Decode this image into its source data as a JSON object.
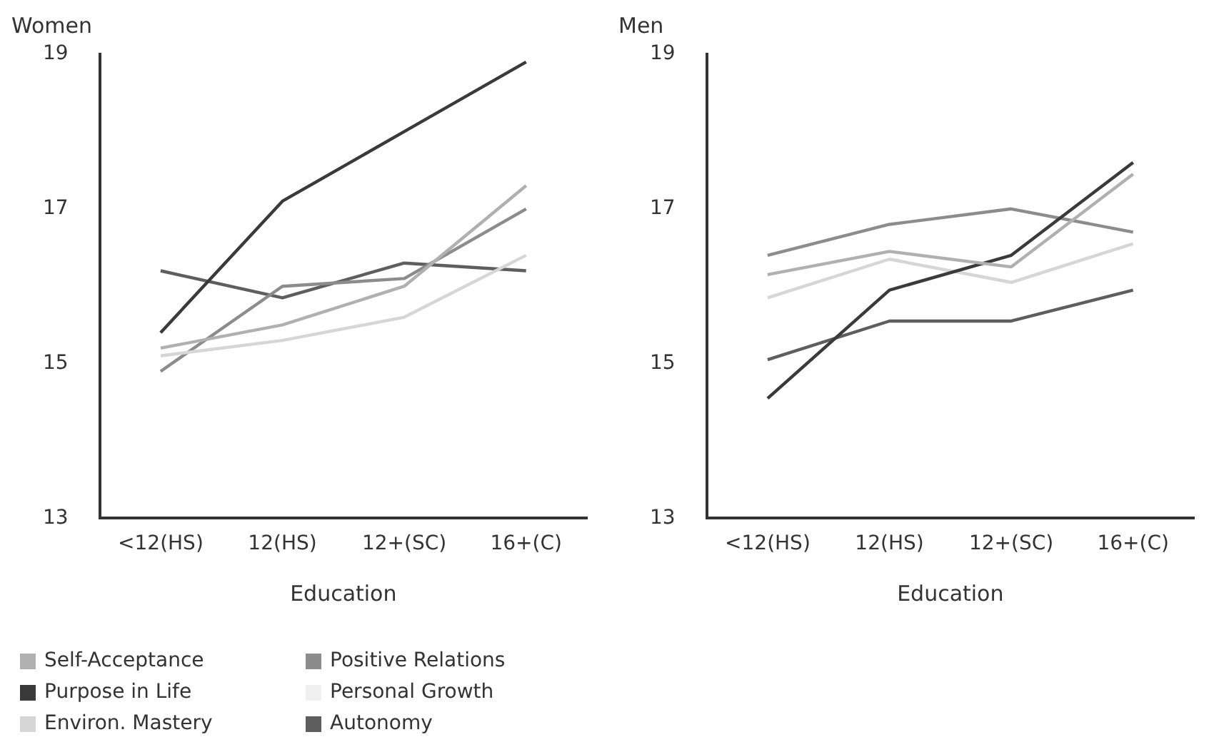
{
  "chart_data": [
    {
      "type": "line",
      "title": "Women",
      "xlabel": "Education",
      "categories": [
        "<12(HS)",
        "12(HS)",
        "12+(SC)",
        "16+(C)"
      ],
      "ylim": [
        13,
        19
      ],
      "yticks": [
        13,
        15,
        17,
        19
      ],
      "grid": false,
      "legend": "bottom",
      "marker": "none",
      "line_style": "solid",
      "series": [
        {
          "name": "Self-Acceptance",
          "color": "#b0b0b0",
          "values": [
            15.2,
            15.5,
            16.0,
            17.3
          ]
        },
        {
          "name": "Purpose in Life",
          "color": "#3a3a3a",
          "values": [
            15.4,
            17.1,
            18.0,
            18.9
          ]
        },
        {
          "name": "Environ. Mastery",
          "color": "#d6d6d6",
          "values": [
            15.1,
            15.3,
            15.6,
            16.4
          ]
        },
        {
          "name": "Positive Relations",
          "color": "#8c8c8c",
          "values": [
            14.9,
            16.0,
            16.1,
            17.0
          ]
        },
        {
          "name": "Personal Growth",
          "color": "#f0f0f0",
          "values": [
            null,
            null,
            null,
            null
          ]
        },
        {
          "name": "Autonomy",
          "color": "#5e5e5e",
          "values": [
            16.2,
            15.85,
            16.3,
            16.2
          ]
        }
      ]
    },
    {
      "type": "line",
      "title": "Men",
      "xlabel": "Education",
      "categories": [
        "<12(HS)",
        "12(HS)",
        "12+(SC)",
        "16+(C)"
      ],
      "ylim": [
        13,
        19
      ],
      "yticks": [
        13,
        15,
        17,
        19
      ],
      "grid": false,
      "legend": false,
      "marker": "none",
      "line_style": "solid",
      "series": [
        {
          "color": "#b0b0b0",
          "values": [
            16.15,
            16.45,
            16.25,
            17.45
          ]
        },
        {
          "color": "#3a3a3a",
          "values": [
            14.55,
            15.95,
            16.4,
            17.6
          ]
        },
        {
          "color": "#d6d6d6",
          "values": [
            15.85,
            16.35,
            16.05,
            16.55
          ]
        },
        {
          "color": "#8c8c8c",
          "values": [
            16.4,
            16.8,
            17.0,
            16.7
          ]
        },
        {
          "color": "#f0f0f0",
          "values": [
            null,
            null,
            null,
            null
          ]
        },
        {
          "color": "#5e5e5e",
          "values": [
            15.05,
            15.55,
            15.55,
            15.95
          ]
        }
      ]
    }
  ]
}
